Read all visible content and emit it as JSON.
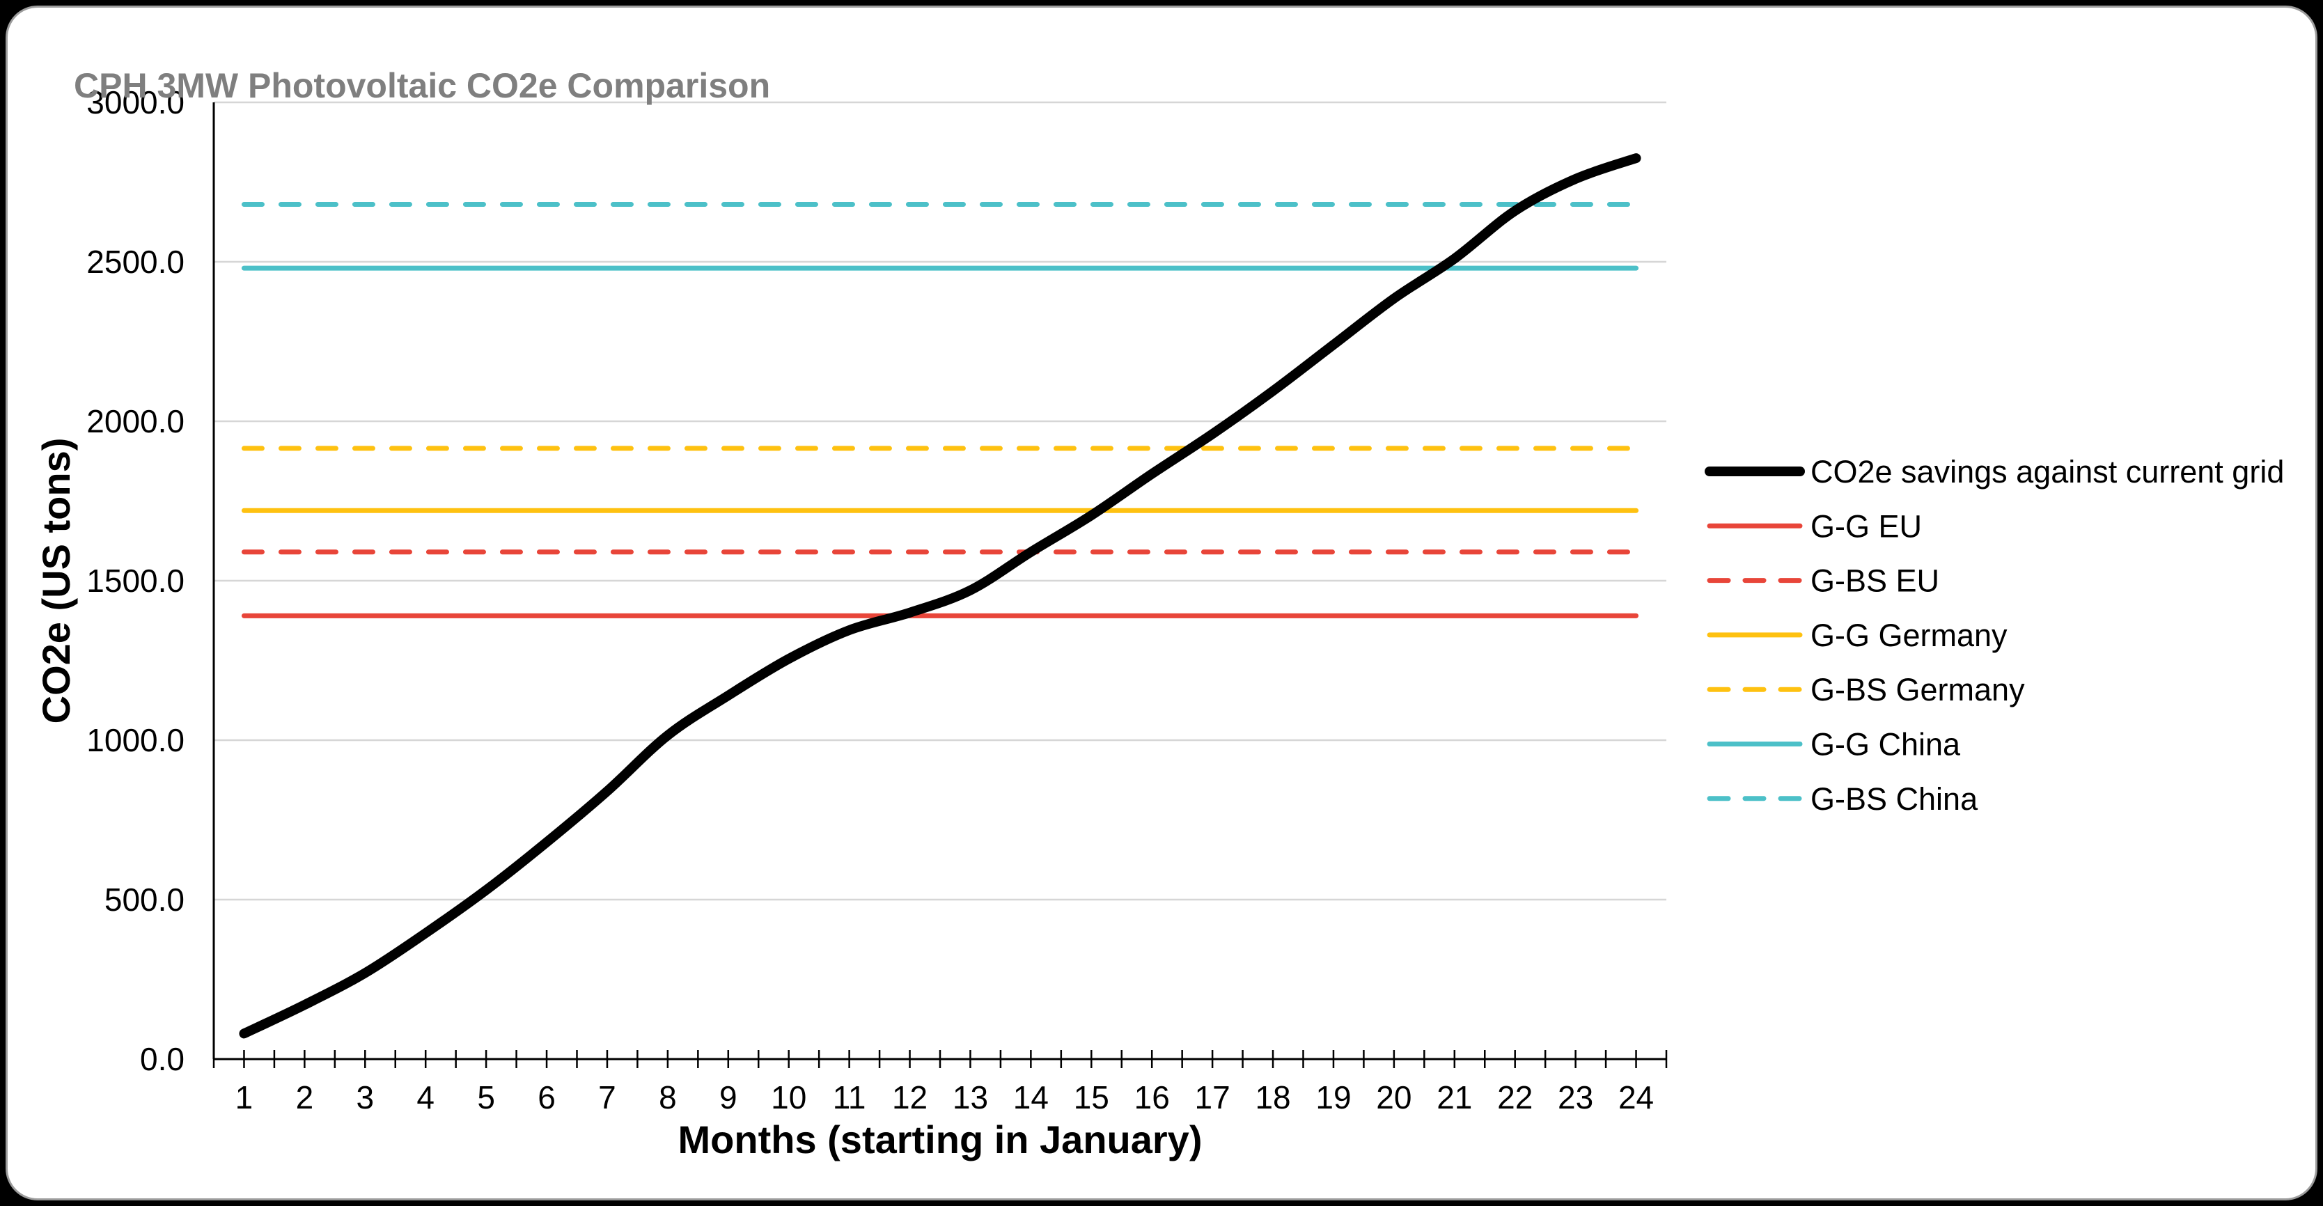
{
  "page": {
    "background_color": "#000000",
    "card_background": "#ffffff",
    "card_border_color": "#9c9c9c"
  },
  "chart_data": {
    "type": "line",
    "title": "CPH 3MW Photovoltaic CO2e Comparison",
    "xlabel": "Months (starting in January)",
    "ylabel": "CO2e (US tons)",
    "x": [
      1,
      2,
      3,
      4,
      5,
      6,
      7,
      8,
      9,
      10,
      11,
      12,
      13,
      14,
      15,
      16,
      17,
      18,
      19,
      20,
      21,
      22,
      23,
      24
    ],
    "x_tick_labels": [
      "1",
      "2",
      "3",
      "4",
      "5",
      "6",
      "7",
      "8",
      "9",
      "10",
      "11",
      "12",
      "13",
      "14",
      "15",
      "16",
      "17",
      "18",
      "19",
      "20",
      "21",
      "22",
      "23",
      "24"
    ],
    "y_ticks": [
      0,
      500,
      1000,
      1500,
      2000,
      2500,
      3000
    ],
    "y_tick_labels": [
      "0.0",
      "500.0",
      "1000.0",
      "1500.0",
      "2000.0",
      "2500.0",
      "3000.0"
    ],
    "xlim": [
      0.5,
      24.5
    ],
    "ylim": [
      0,
      3000
    ],
    "grid": "horizontal",
    "grid_color": "#d6d6d6",
    "axis_color": "#000000",
    "legend_position": "right",
    "series": [
      {
        "name": "CO2e savings against current grid",
        "kind": "curve",
        "style": "solid",
        "color": "#000000",
        "stroke_width": 14,
        "values": [
          80,
          170,
          270,
          395,
          530,
          680,
          840,
          1015,
          1140,
          1255,
          1345,
          1400,
          1470,
          1590,
          1705,
          1835,
          1960,
          2095,
          2240,
          2385,
          2510,
          2660,
          2760,
          2825
        ]
      },
      {
        "name": "G-G EU",
        "kind": "reference-line",
        "style": "solid",
        "color": "#e84539",
        "stroke_width": 7,
        "value": 1390
      },
      {
        "name": "G-BS EU",
        "kind": "reference-line",
        "style": "dashed",
        "color": "#e84539",
        "stroke_width": 7,
        "value": 1590
      },
      {
        "name": "G-G Germany",
        "kind": "reference-line",
        "style": "solid",
        "color": "#fec110",
        "stroke_width": 7,
        "value": 1720
      },
      {
        "name": "G-BS Germany",
        "kind": "reference-line",
        "style": "dashed",
        "color": "#fec110",
        "stroke_width": 7,
        "value": 1915
      },
      {
        "name": "G-G China",
        "kind": "reference-line",
        "style": "solid",
        "color": "#4cc0c8",
        "stroke_width": 7,
        "value": 2480
      },
      {
        "name": "G-BS China",
        "kind": "reference-line",
        "style": "dashed",
        "color": "#4cc0c8",
        "stroke_width": 7,
        "value": 2680
      }
    ]
  }
}
